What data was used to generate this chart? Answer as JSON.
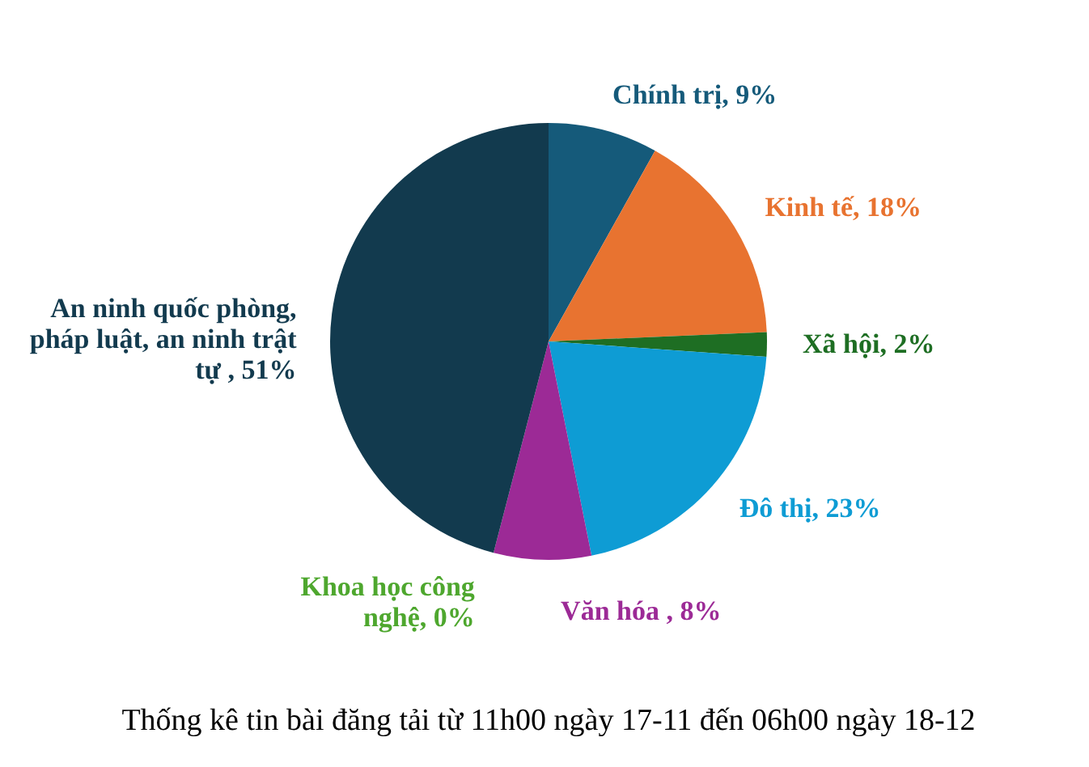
{
  "chart_data": {
    "type": "pie",
    "title": "Thống kê tin bài đăng tải từ 11h00 ngày 17-11 đến 06h00 ngày 18-12",
    "categories": [
      "Chính trị",
      "Kinh tế",
      "Xã hội",
      "Đô thị",
      "Văn hóa",
      "Khoa học công nghệ",
      "An ninh quốc phòng, pháp luật, an ninh trật tự"
    ],
    "values": [
      9,
      18,
      2,
      23,
      8,
      0,
      51
    ],
    "colors": [
      "#155a7a",
      "#e87330",
      "#1e6e23",
      "#0e9cd4",
      "#9c2a96",
      "#4ea72e",
      "#123a4e"
    ],
    "value_labels": [
      ", 9%",
      ", 18%",
      ", 2%",
      ", 23%",
      " , 8%",
      ", 0%",
      " , 51%"
    ]
  }
}
